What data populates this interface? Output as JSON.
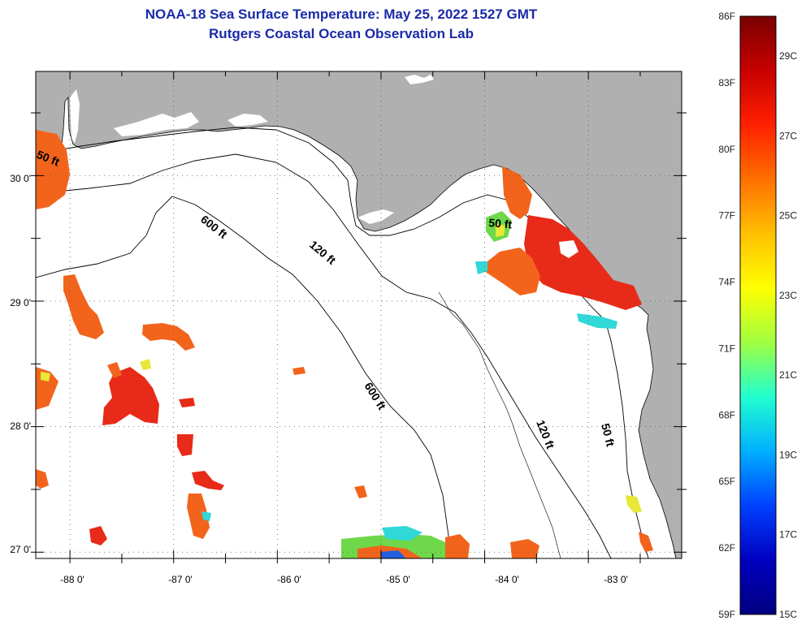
{
  "title_line1": "NOAA-18 Sea Surface Temperature:  May 25, 2022 1527 GMT",
  "title_line2": "Rutgers Coastal Ocean Observation Lab",
  "axes": {
    "x_ticks": [
      {
        "label": "-88 0'",
        "value": -88
      },
      {
        "label": "-87 0'",
        "value": -87
      },
      {
        "label": "-86 0'",
        "value": -86
      },
      {
        "label": "-85 0'",
        "value": -85
      },
      {
        "label": "-84 0'",
        "value": -84
      },
      {
        "label": "-83 0'",
        "value": -83
      }
    ],
    "y_ticks": [
      {
        "label": "30 0'",
        "value": 30
      },
      {
        "label": "29 0'",
        "value": 29
      },
      {
        "label": "28 0'",
        "value": 28
      },
      {
        "label": "27 0'",
        "value": 27
      }
    ],
    "lon_range": [
      -88.33,
      -82.1
    ],
    "lat_range": [
      26.95,
      30.83
    ]
  },
  "contour_labels": [
    "50 ft",
    "600 ft",
    "120 ft",
    "50 ft",
    "600 ft",
    "120 ft",
    "50 ft"
  ],
  "colorbar": {
    "f_labels": [
      "86F",
      "83F",
      "80F",
      "77F",
      "74F",
      "71F",
      "68F",
      "65F",
      "62F",
      "59F"
    ],
    "c_labels": [
      "29C",
      "27C",
      "25C",
      "23C",
      "21C",
      "19C",
      "17C",
      "15C"
    ],
    "f_range": [
      59,
      86
    ],
    "colors": [
      "#7a0000",
      "#c80000",
      "#ff2000",
      "#ff7000",
      "#ffc000",
      "#ffff00",
      "#a0ff40",
      "#20ffd0",
      "#00b0ff",
      "#0040ff",
      "#0000c0",
      "#000080"
    ]
  },
  "colors": {
    "land": "#b0b0b0",
    "water": "#ffffff",
    "title": "#1a2aa8",
    "sst_red": "#e82a18",
    "sst_orange": "#f2641c",
    "sst_yellow": "#e8e838",
    "sst_green": "#6ed84a",
    "sst_cyan": "#30d8d8"
  }
}
